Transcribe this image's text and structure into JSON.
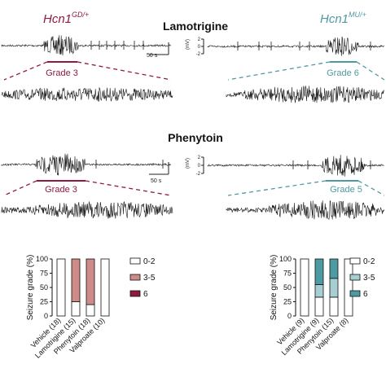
{
  "colors": {
    "gd": "#8e1b3e",
    "gd_light": "#cf8a8a",
    "gd_mid": "#b3545c",
    "mu": "#4e9aa3",
    "mu_light": "#a7cfd3",
    "mu_mid": "#6fb0b8",
    "trace": "#1a1a1a"
  },
  "labels": {
    "hcn_left_base": "Hcn1",
    "hcn_left_sup": "GD/+",
    "hcn_right_base": "Hcn1",
    "hcn_right_sup": "MU/+",
    "lamotrigine_heading": "Lamotrigine",
    "phenytoin_heading": "Phenytoin",
    "scalebar_time_1": "50 s",
    "scalebar_time_2": "50 s",
    "mv_unit_1": "(mV)",
    "mv_unit_2": "(mV)",
    "mv_ticks_1": [
      "2",
      "0",
      "-2"
    ],
    "mv_ticks_2": [
      "2",
      "0",
      "-2"
    ],
    "grade_lam_gd": "Grade 3",
    "grade_lam_mu": "Grade 6",
    "grade_phe_gd": "Grade 3",
    "grade_phe_mu": "Grade 5"
  },
  "chart_data": [
    {
      "type": "bar",
      "stacked": true,
      "genotype": "Hcn1 GD/+",
      "categories": [
        "Vehicle (18)",
        "Lamotrigine (15)",
        "Phenytoin (18)",
        "Valproate (10)"
      ],
      "series": [
        {
          "name": "0-2",
          "color": "#ffffff",
          "values": [
            100,
            25,
            20,
            100
          ]
        },
        {
          "name": "3-5",
          "color": "#cf8a8a",
          "values": [
            0,
            75,
            80,
            0
          ]
        },
        {
          "name": "6",
          "color": "#8e1b3e",
          "values": [
            0,
            0,
            0,
            0
          ]
        }
      ],
      "ylabel": "Seizure grade (%)",
      "ylim": [
        0,
        100
      ],
      "yticks": [
        "0",
        "25",
        "50",
        "75",
        "100"
      ],
      "legend": "right"
    },
    {
      "type": "bar",
      "stacked": true,
      "genotype": "Hcn1 MU/+",
      "categories": [
        "Vehicle (9)",
        "Lamotrigine (9)",
        "Phenytoin (15)",
        "Valproate (8)"
      ],
      "series": [
        {
          "name": "0-2",
          "color": "#ffffff",
          "values": [
            100,
            33,
            33,
            100
          ]
        },
        {
          "name": "3-5",
          "color": "#a7cfd3",
          "values": [
            0,
            22,
            33,
            0
          ]
        },
        {
          "name": "6",
          "color": "#4e9aa3",
          "values": [
            0,
            45,
            34,
            0
          ]
        }
      ],
      "ylabel": "Seizure grade (%)",
      "ylim": [
        0,
        100
      ],
      "yticks": [
        "0",
        "25",
        "50",
        "75",
        "100"
      ],
      "legend": "right"
    }
  ]
}
